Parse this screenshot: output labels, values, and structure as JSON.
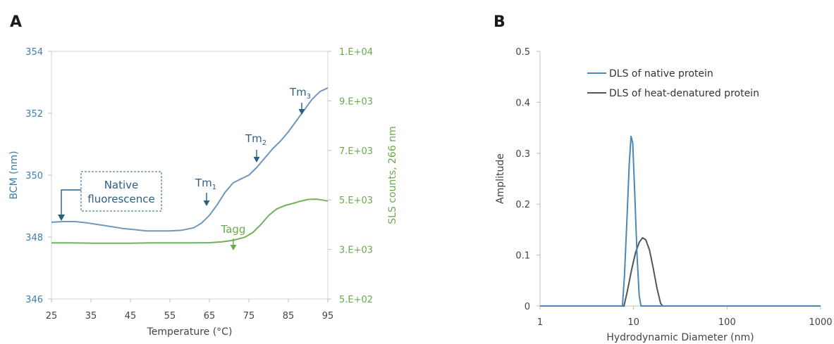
{
  "panels": {
    "a": {
      "label": "A"
    },
    "b": {
      "label": "B"
    }
  },
  "colors": {
    "bcm": "#6f97bf",
    "sls": "#72b35a",
    "native": "#4f86b8",
    "denatured": "#555555",
    "annotation_blue": "#2a5f86",
    "annotation_green": "#6aab4e"
  },
  "chart_data": [
    {
      "type": "line",
      "panel": "A",
      "xlabel": "Temperature (°C)",
      "ylabel": "BCM (nm)",
      "y2label": "SLS counts, 266 nm",
      "xlim": [
        25,
        95
      ],
      "ylim": [
        346,
        354
      ],
      "y2lim": [
        500,
        10000
      ],
      "x_ticks": [
        "25",
        "35",
        "45",
        "55",
        "65",
        "75",
        "85",
        "95"
      ],
      "y_ticks": [
        "346",
        "348",
        "350",
        "352",
        "354"
      ],
      "y2_ticks": [
        "5.E+02",
        "3.E+03",
        "5.E+03",
        "7.E+03",
        "9.E+03",
        "1.E+04"
      ],
      "series": [
        {
          "name": "BCM",
          "axis": "left",
          "x": [
            25,
            28,
            31,
            34,
            37,
            40,
            43,
            46,
            49,
            52,
            55,
            58,
            61,
            63,
            65,
            67,
            69,
            71,
            73,
            75,
            77,
            79,
            81,
            83,
            85,
            87,
            89,
            91,
            93,
            95
          ],
          "y": [
            348.48,
            348.5,
            348.5,
            348.46,
            348.4,
            348.34,
            348.28,
            348.24,
            348.2,
            348.2,
            348.2,
            348.22,
            348.3,
            348.45,
            348.7,
            349.05,
            349.45,
            349.75,
            349.88,
            350.0,
            350.25,
            350.55,
            350.85,
            351.1,
            351.4,
            351.75,
            352.1,
            352.45,
            352.7,
            352.82
          ]
        },
        {
          "name": "SLS",
          "axis": "right",
          "x": [
            25,
            30,
            35,
            40,
            45,
            50,
            55,
            60,
            65,
            68,
            71,
            74,
            76,
            78,
            80,
            82,
            84,
            86,
            88,
            90,
            92,
            93,
            95
          ],
          "y": [
            2650,
            2650,
            2640,
            2640,
            2640,
            2650,
            2650,
            2650,
            2660,
            2690,
            2750,
            2870,
            3050,
            3350,
            3700,
            3950,
            4080,
            4160,
            4250,
            4320,
            4330,
            4310,
            4260
          ]
        }
      ],
      "annotations": {
        "native": "Native\nfluorescence",
        "tm1": "Tm",
        "tm1_sub": "1",
        "tm2": "Tm",
        "tm2_sub": "2",
        "tm3": "Tm",
        "tm3_sub": "3",
        "tagg": "Tagg"
      }
    },
    {
      "type": "line",
      "panel": "B",
      "xlabel": "Hydrodynamic Diameter (nm)",
      "ylabel": "Amplitude",
      "xscale": "log",
      "xlim": [
        1,
        1000
      ],
      "ylim": [
        0,
        0.5
      ],
      "x_ticks": [
        "1",
        "10",
        "100",
        "1000"
      ],
      "y_ticks": [
        "0",
        "0.1",
        "0.2",
        "0.3",
        "0.4",
        "0.5"
      ],
      "legend_position": "top-left",
      "series": [
        {
          "name": "DLS of native protein",
          "x": [
            1,
            7.6,
            8.0,
            8.5,
            9.0,
            9.4,
            9.8,
            10.3,
            10.9,
            11.5,
            12.0,
            1000
          ],
          "y": [
            0,
            0,
            0.06,
            0.17,
            0.28,
            0.333,
            0.32,
            0.22,
            0.1,
            0.02,
            0,
            0
          ]
        },
        {
          "name": "DLS of heat-denatured protein",
          "x": [
            1,
            7.9,
            8.6,
            9.5,
            10.5,
            11.5,
            12.5,
            13.5,
            14.8,
            16.2,
            17.8,
            19.5,
            20.5,
            1000
          ],
          "y": [
            0,
            0,
            0.03,
            0.07,
            0.105,
            0.125,
            0.134,
            0.13,
            0.11,
            0.075,
            0.035,
            0.005,
            0,
            0
          ]
        }
      ]
    }
  ]
}
